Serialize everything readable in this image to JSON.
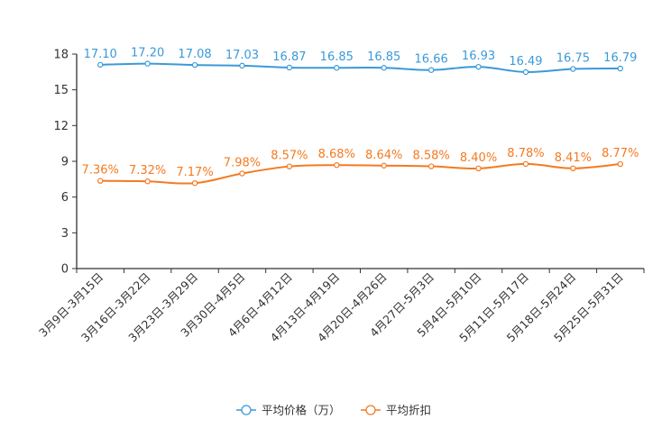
{
  "chart_data": {
    "type": "line",
    "categories": [
      "3月9日-3月15日",
      "3月16日-3月22日",
      "3月23日-3月29日",
      "3月30日-4月5日",
      "4月6日-4月12日",
      "4月13日-4月19日",
      "4月20日-4月26日",
      "4月27日-5月3日",
      "5月4日-5月10日",
      "5月11日-5月17日",
      "5月18日-5月24日",
      "5月25日-5月31日"
    ],
    "series": [
      {
        "name": "平均价格（万）",
        "color": "#3a9ad9",
        "values": [
          17.1,
          17.2,
          17.08,
          17.03,
          16.87,
          16.85,
          16.85,
          16.66,
          16.93,
          16.49,
          16.75,
          16.79
        ],
        "labels": [
          "17.10",
          "17.20",
          "17.08",
          "17.03",
          "16.87",
          "16.85",
          "16.85",
          "16.66",
          "16.93",
          "16.49",
          "16.75",
          "16.79"
        ]
      },
      {
        "name": "平均折扣",
        "color": "#f47a20",
        "values": [
          7.36,
          7.32,
          7.17,
          7.98,
          8.57,
          8.68,
          8.64,
          8.58,
          8.4,
          8.78,
          8.41,
          8.77
        ],
        "labels": [
          "7.36%",
          "7.32%",
          "7.17%",
          "7.98%",
          "8.57%",
          "8.68%",
          "8.64%",
          "8.58%",
          "8.40%",
          "8.78%",
          "8.41%",
          "8.77%"
        ]
      }
    ],
    "ylim": [
      0,
      18
    ],
    "yticks": [
      0,
      3,
      6,
      9,
      12,
      15,
      18
    ],
    "grid": false,
    "legend_position": "bottom-center"
  }
}
